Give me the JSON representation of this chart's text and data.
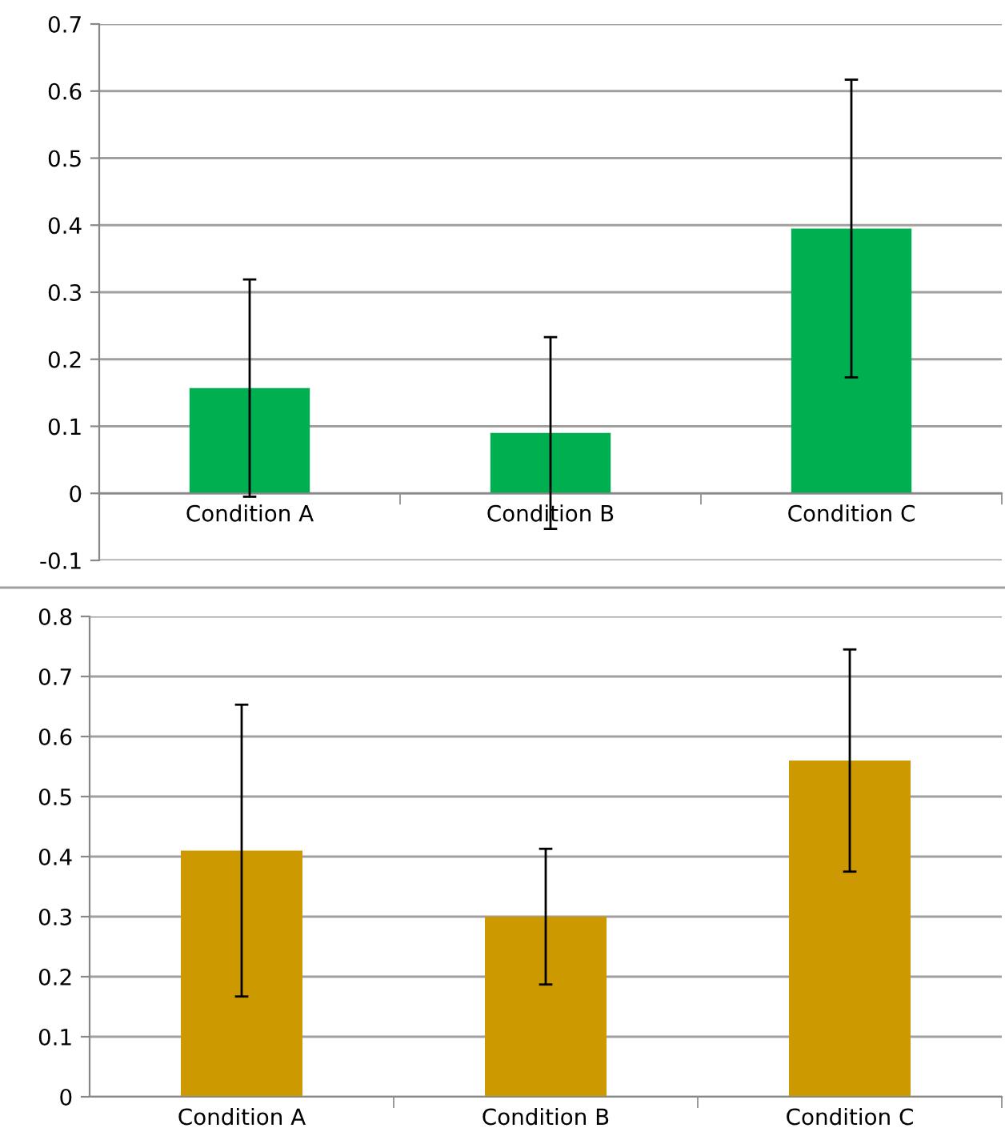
{
  "chart_data": [
    {
      "type": "bar",
      "categories": [
        "Condition A",
        "Condition B",
        "Condition C"
      ],
      "values": [
        0.157,
        0.09,
        0.395
      ],
      "errors": [
        0.162,
        0.143,
        0.222
      ],
      "color": "#00b050",
      "ylim": [
        -0.1,
        0.7
      ],
      "yticks": [
        -0.1,
        0,
        0.1,
        0.2,
        0.3,
        0.4,
        0.5,
        0.6,
        0.7
      ],
      "grid": "y",
      "legend": false
    },
    {
      "type": "bar",
      "categories": [
        "Condition A",
        "Condition B",
        "Condition C"
      ],
      "values": [
        0.41,
        0.3,
        0.56
      ],
      "errors": [
        0.243,
        0.113,
        0.185
      ],
      "color": "#cc9900",
      "ylim": [
        0,
        0.8
      ],
      "yticks": [
        0,
        0.1,
        0.2,
        0.3,
        0.4,
        0.5,
        0.6,
        0.7,
        0.8
      ],
      "grid": "y",
      "legend": false
    }
  ]
}
